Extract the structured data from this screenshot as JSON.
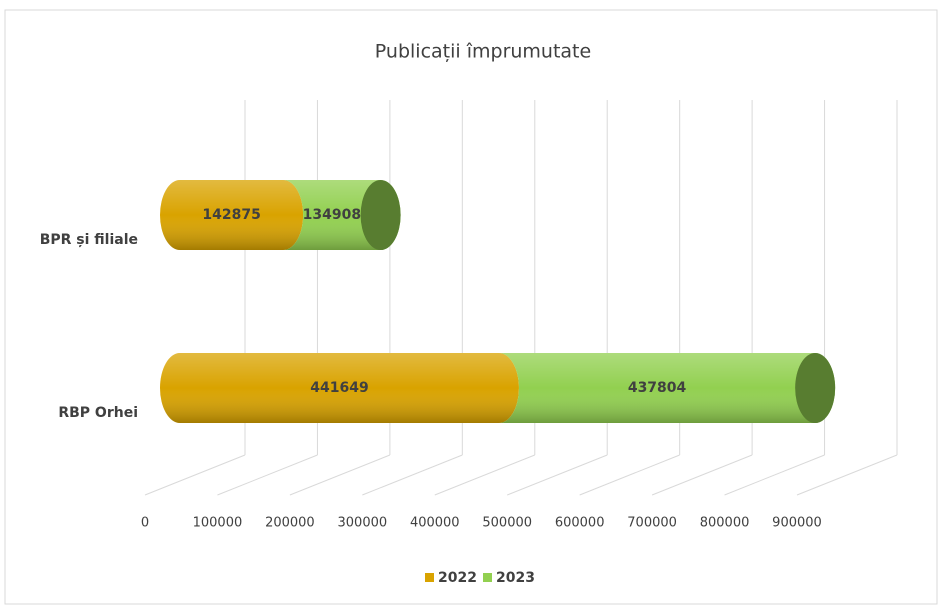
{
  "chart_data": {
    "type": "bar3d_stacked_horizontal",
    "title": "Publicații împrumutate",
    "categories": [
      "BPR și filiale",
      "RBP Orhei"
    ],
    "series": [
      {
        "name": "2022",
        "color": "#d9a300",
        "values": [
          142875,
          441649
        ]
      },
      {
        "name": "2023",
        "color": "#92d050",
        "values": [
          134908,
          437804
        ]
      }
    ],
    "xlim": [
      0,
      900000
    ],
    "xticks": [
      0,
      100000,
      200000,
      300000,
      400000,
      500000,
      600000,
      700000,
      800000,
      900000
    ],
    "grid": true,
    "legend": "bottom"
  }
}
